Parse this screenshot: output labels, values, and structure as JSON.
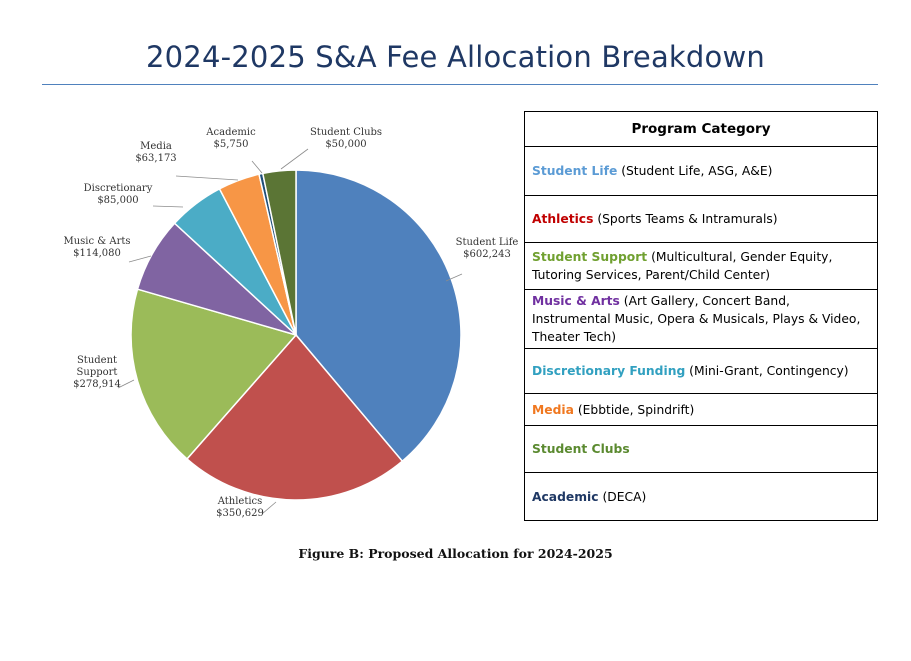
{
  "header": {
    "title": "2024-2025 S&A Fee Allocation Breakdown"
  },
  "chart_data": {
    "type": "pie",
    "slices": [
      {
        "label": "Student Life",
        "value_label": "$602,243",
        "value": 602243,
        "color": "#4f81bd"
      },
      {
        "label": "Athletics",
        "value_label": "$350,629",
        "value": 350629,
        "color": "#c0504d"
      },
      {
        "label": "Student Support",
        "value_label": "$278,914",
        "value": 278914,
        "color": "#9bbb59"
      },
      {
        "label": "Music & Arts",
        "value_label": "$114,080",
        "value": 114080,
        "color": "#8064a2"
      },
      {
        "label": "Discretionary",
        "value_label": "$85,000",
        "value": 85000,
        "color": "#4bacc6"
      },
      {
        "label": "Media",
        "value_label": "$63,173",
        "value": 63173,
        "color": "#f79646"
      },
      {
        "label": "Academic",
        "value_label": "$5,750",
        "value": 5750,
        "color": "#1f4e79"
      },
      {
        "label": "Student Clubs",
        "value_label": "$50,000",
        "value": 50000,
        "color": "#5b7535"
      }
    ],
    "title": "",
    "legend_placement": "right-table"
  },
  "legend_table": {
    "header": "Program Category",
    "rows": [
      {
        "category": "Student Life",
        "detail": " (Student Life, ASG, A&E)",
        "color": "#5b9bd5"
      },
      {
        "category": "Athletics",
        "detail": " (Sports Teams & Intramurals)",
        "color": "#c00000"
      },
      {
        "category": "Student Support",
        "detail": " (Multicultural, Gender Equity, Tutoring Services, Parent/Child Center)",
        "color": "#70a030"
      },
      {
        "category": "Music & Arts",
        "detail": " (Art Gallery, Concert Band, Instrumental Music, Opera & Musicals, Plays & Video, Theater Tech)",
        "color": "#7030a0"
      },
      {
        "category": "Discretionary Funding",
        "detail": " (Mini-Grant, Contingency)",
        "color": "#31a0c0"
      },
      {
        "category": "Media",
        "detail": " (Ebbtide, Spindrift)",
        "color": "#f07820"
      },
      {
        "category": "Student Clubs",
        "detail": "",
        "color": "#5b8a30"
      },
      {
        "category": "Academic",
        "detail": " (DECA)",
        "color": "#1f3864"
      }
    ]
  },
  "caption": "Figure B: Proposed Allocation for 2024-2025"
}
